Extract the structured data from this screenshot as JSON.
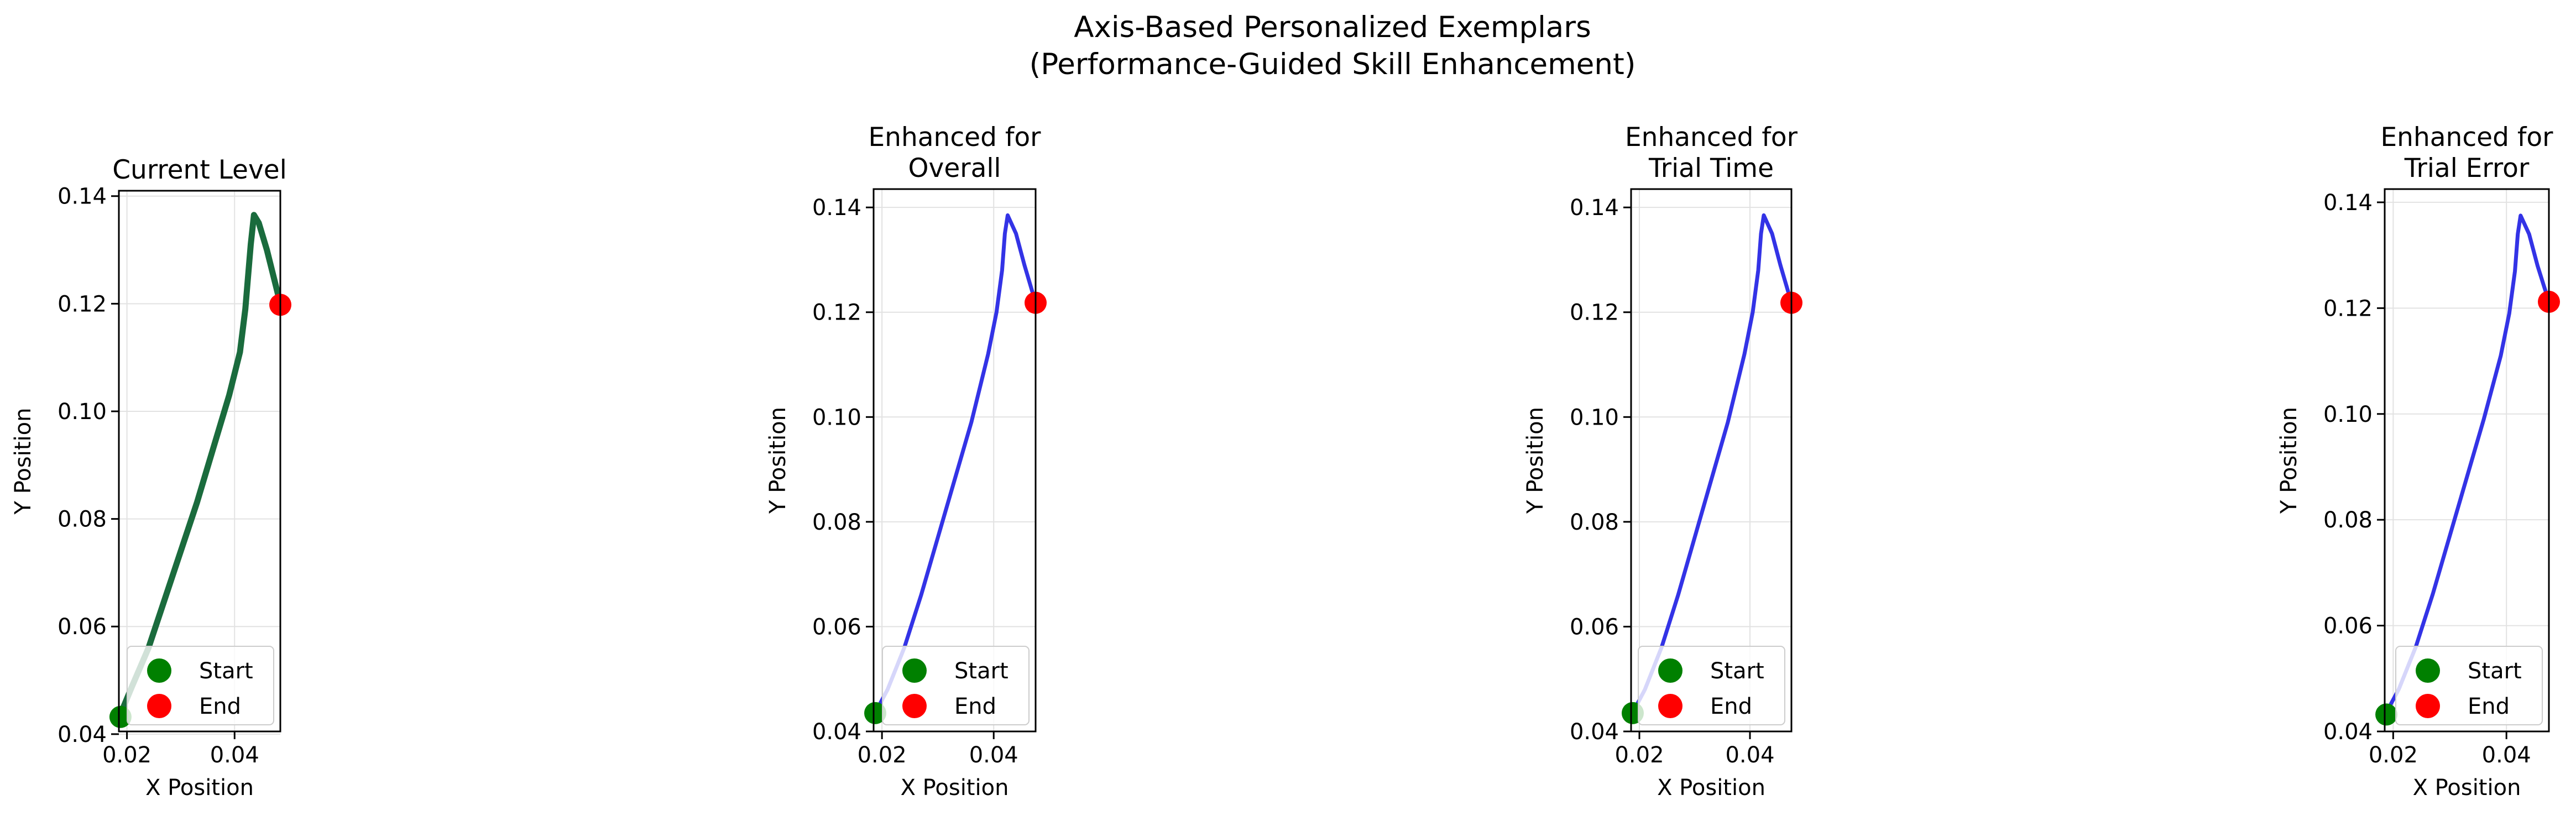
{
  "suptitle": [
    "Axis-Based Personalized Exemplars",
    "(Performance-Guided Skill Enhancement)"
  ],
  "chart_data": [
    {
      "type": "line",
      "title": [
        "Current Level"
      ],
      "xlabel": "X Position",
      "ylabel": "Y Position",
      "xlim": [
        0.0185,
        0.0485
      ],
      "ylim": [
        0.0405,
        0.141
      ],
      "xticks": [
        0.02,
        0.04
      ],
      "xtick_labels": [
        "0.02",
        "0.04"
      ],
      "yticks": [
        0.04,
        0.06,
        0.08,
        0.1,
        0.12,
        0.14
      ],
      "ytick_labels": [
        "0.04",
        "0.06",
        "0.08",
        "0.10",
        "0.12",
        "0.14"
      ],
      "grid": true,
      "legend_position": "lower-right",
      "line_color": "#1a6b3d",
      "series": [
        {
          "x": [
            0.0185,
            0.021,
            0.024,
            0.027,
            0.03,
            0.033,
            0.036,
            0.039,
            0.041,
            0.042,
            0.043,
            0.0436,
            0.0445,
            0.046,
            0.0475,
            0.0485
          ],
          "y": [
            0.043,
            0.049,
            0.056,
            0.065,
            0.074,
            0.083,
            0.093,
            0.103,
            0.111,
            0.119,
            0.131,
            0.1365,
            0.135,
            0.13,
            0.124,
            0.12
          ]
        }
      ],
      "markers": [
        {
          "name": "Start",
          "x": 0.0188,
          "y": 0.0432,
          "color": "#008000"
        },
        {
          "name": "End",
          "x": 0.0485,
          "y": 0.1198,
          "color": "#ff0000"
        }
      ],
      "legend": [
        {
          "label": "Start",
          "color": "#008000"
        },
        {
          "label": "End",
          "color": "#ff0000"
        }
      ]
    },
    {
      "type": "line",
      "title": [
        "Enhanced for",
        "Overall"
      ],
      "xlabel": "X Position",
      "ylabel": "Y Position",
      "xlim": [
        0.0185,
        0.0475
      ],
      "ylim": [
        0.04,
        0.1435
      ],
      "xticks": [
        0.02,
        0.04
      ],
      "xtick_labels": [
        "0.02",
        "0.04"
      ],
      "yticks": [
        0.04,
        0.06,
        0.08,
        0.1,
        0.12,
        0.14
      ],
      "ytick_labels": [
        "0.04",
        "0.06",
        "0.08",
        "0.10",
        "0.12",
        "0.14"
      ],
      "grid": true,
      "legend_position": "lower-right",
      "line_color": "#3333e6",
      "series": [
        {
          "x": [
            0.0185,
            0.021,
            0.024,
            0.027,
            0.03,
            0.033,
            0.036,
            0.039,
            0.0405,
            0.0415,
            0.042,
            0.0425,
            0.044,
            0.0455,
            0.0475
          ],
          "y": [
            0.043,
            0.048,
            0.056,
            0.066,
            0.077,
            0.088,
            0.099,
            0.112,
            0.12,
            0.128,
            0.135,
            0.1385,
            0.135,
            0.129,
            0.1218
          ]
        }
      ],
      "markers": [
        {
          "name": "Start",
          "x": 0.0188,
          "y": 0.0435,
          "color": "#008000"
        },
        {
          "name": "End",
          "x": 0.0475,
          "y": 0.1218,
          "color": "#ff0000"
        }
      ],
      "legend": [
        {
          "label": "Start",
          "color": "#008000"
        },
        {
          "label": "End",
          "color": "#ff0000"
        }
      ]
    },
    {
      "type": "line",
      "title": [
        "Enhanced for",
        "Trial Time"
      ],
      "xlabel": "X Position",
      "ylabel": "Y Position",
      "xlim": [
        0.0185,
        0.0475
      ],
      "ylim": [
        0.04,
        0.1435
      ],
      "xticks": [
        0.02,
        0.04
      ],
      "xtick_labels": [
        "0.02",
        "0.04"
      ],
      "yticks": [
        0.04,
        0.06,
        0.08,
        0.1,
        0.12,
        0.14
      ],
      "ytick_labels": [
        "0.04",
        "0.06",
        "0.08",
        "0.10",
        "0.12",
        "0.14"
      ],
      "grid": true,
      "legend_position": "lower-right",
      "line_color": "#3333e6",
      "series": [
        {
          "x": [
            0.0185,
            0.021,
            0.024,
            0.027,
            0.03,
            0.033,
            0.036,
            0.039,
            0.0405,
            0.0415,
            0.042,
            0.0425,
            0.044,
            0.0455,
            0.0475
          ],
          "y": [
            0.043,
            0.048,
            0.056,
            0.066,
            0.077,
            0.088,
            0.099,
            0.112,
            0.12,
            0.128,
            0.135,
            0.1385,
            0.135,
            0.129,
            0.1218
          ]
        }
      ],
      "markers": [
        {
          "name": "Start",
          "x": 0.0188,
          "y": 0.0435,
          "color": "#008000"
        },
        {
          "name": "End",
          "x": 0.0475,
          "y": 0.1218,
          "color": "#ff0000"
        }
      ],
      "legend": [
        {
          "label": "Start",
          "color": "#008000"
        },
        {
          "label": "End",
          "color": "#ff0000"
        }
      ]
    },
    {
      "type": "line",
      "title": [
        "Enhanced for",
        "Trial Error"
      ],
      "xlabel": "X Position",
      "ylabel": "Y Position",
      "xlim": [
        0.0185,
        0.0475
      ],
      "ylim": [
        0.04,
        0.1425
      ],
      "xticks": [
        0.02,
        0.04
      ],
      "xtick_labels": [
        "0.02",
        "0.04"
      ],
      "yticks": [
        0.04,
        0.06,
        0.08,
        0.1,
        0.12,
        0.14
      ],
      "ytick_labels": [
        "0.04",
        "0.06",
        "0.08",
        "0.10",
        "0.12",
        "0.14"
      ],
      "grid": true,
      "legend_position": "lower-right",
      "line_color": "#3333e6",
      "series": [
        {
          "x": [
            0.0185,
            0.021,
            0.024,
            0.027,
            0.03,
            0.033,
            0.036,
            0.039,
            0.0405,
            0.0415,
            0.042,
            0.0425,
            0.044,
            0.0455,
            0.0475
          ],
          "y": [
            0.043,
            0.048,
            0.056,
            0.066,
            0.077,
            0.088,
            0.099,
            0.111,
            0.119,
            0.127,
            0.134,
            0.1375,
            0.134,
            0.128,
            0.1212
          ]
        }
      ],
      "markers": [
        {
          "name": "Start",
          "x": 0.0188,
          "y": 0.0432,
          "color": "#008000"
        },
        {
          "name": "End",
          "x": 0.0475,
          "y": 0.1212,
          "color": "#ff0000"
        }
      ],
      "legend": [
        {
          "label": "Start",
          "color": "#008000"
        },
        {
          "label": "End",
          "color": "#ff0000"
        }
      ]
    }
  ]
}
